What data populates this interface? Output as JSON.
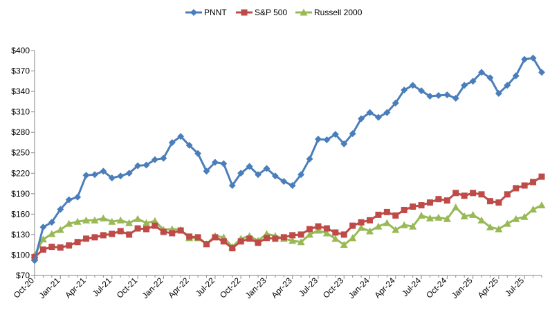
{
  "chart_data": {
    "type": "line",
    "title": "",
    "xlabel": "",
    "ylabel": "",
    "ylim": [
      70,
      400
    ],
    "y_ticks": [
      70,
      100,
      130,
      160,
      190,
      220,
      250,
      280,
      310,
      340,
      370,
      400
    ],
    "y_tick_labels": [
      "$70",
      "$100",
      "$130",
      "$160",
      "$190",
      "$220",
      "$250",
      "$280",
      "$310",
      "$340",
      "$370",
      "$400"
    ],
    "x_tick_labels": [
      "Oct-20",
      "Jan-21",
      "Apr-21",
      "Jul-21",
      "Oct-21",
      "Jan-22",
      "Apr-22",
      "Jul-22",
      "Oct-22",
      "Jan-23",
      "Apr-23",
      "Jul-23",
      "Oct-23",
      "Jan-24",
      "Apr-24",
      "Jul-24",
      "Oct-24",
      "Jan-25",
      "Apr-25",
      "Jul-25"
    ],
    "legend_position": "top",
    "grid": false,
    "series": [
      {
        "name": "PNNT",
        "color": "#4a7ebb",
        "marker": "diamond",
        "values": [
          92,
          141,
          148,
          167,
          181,
          185,
          217,
          218,
          223,
          213,
          216,
          220,
          231,
          232,
          240,
          242,
          265,
          274,
          261,
          249,
          223,
          236,
          234,
          202,
          220,
          230,
          218,
          227,
          216,
          208,
          202,
          218,
          241,
          270,
          269,
          277,
          263,
          278,
          300,
          309,
          302,
          309,
          323,
          342,
          349,
          341,
          333,
          334,
          335,
          330,
          349,
          355,
          368,
          360,
          337,
          349,
          363,
          387,
          389,
          368
        ]
      },
      {
        "name": "S&P 500",
        "color": "#be4b48",
        "marker": "square",
        "values": [
          97,
          108,
          112,
          111,
          114,
          119,
          124,
          126,
          129,
          131,
          135,
          130,
          139,
          138,
          143,
          134,
          132,
          136,
          127,
          126,
          116,
          126,
          120,
          110,
          120,
          124,
          118,
          125,
          124,
          126,
          129,
          130,
          138,
          142,
          139,
          133,
          130,
          143,
          148,
          151,
          159,
          163,
          158,
          166,
          171,
          173,
          177,
          182,
          180,
          191,
          187,
          191,
          189,
          179,
          177,
          189,
          198,
          202,
          207,
          215
        ]
      },
      {
        "name": "Russell 2000",
        "color": "#98b954",
        "marker": "triangle",
        "values": [
          100,
          123,
          131,
          137,
          146,
          149,
          151,
          151,
          154,
          149,
          151,
          147,
          153,
          147,
          150,
          137,
          138,
          137,
          125,
          125,
          116,
          128,
          126,
          112,
          124,
          128,
          121,
          131,
          128,
          124,
          121,
          119,
          130,
          136,
          132,
          124,
          115,
          125,
          140,
          135,
          142,
          147,
          137,
          144,
          142,
          158,
          154,
          155,
          153,
          170,
          157,
          159,
          151,
          141,
          138,
          146,
          153,
          156,
          167,
          173
        ]
      }
    ]
  }
}
